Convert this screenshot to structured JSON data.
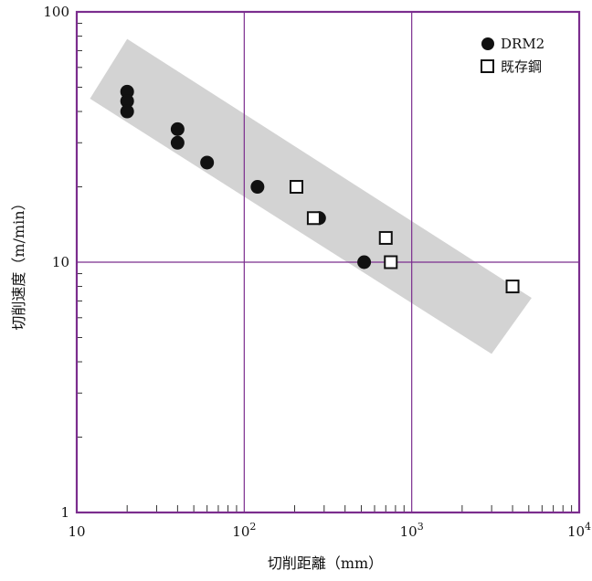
{
  "chart_data": {
    "type": "scatter",
    "x_scale": "log",
    "y_scale": "log",
    "xlim": [
      10,
      10000
    ],
    "ylim": [
      1,
      100
    ],
    "xlabel": "切削距離（mm）",
    "ylabel": "切削速度（m/min）",
    "x_tick_labels": [
      {
        "value": 10,
        "base": "10",
        "exp": ""
      },
      {
        "value": 100,
        "base": "10",
        "exp": "2"
      },
      {
        "value": 1000,
        "base": "10",
        "exp": "3"
      },
      {
        "value": 10000,
        "base": "10",
        "exp": "4"
      }
    ],
    "y_tick_labels": [
      {
        "value": 1,
        "label": "1"
      },
      {
        "value": 10,
        "label": "10"
      },
      {
        "value": 100,
        "label": "100"
      }
    ],
    "grid": true,
    "grid_color": "#7b2d8e",
    "frame_color": "#7b2d8e",
    "band_color": "#d3d3d3",
    "band_polygon": [
      [
        12,
        45
      ],
      [
        20,
        78
      ],
      [
        5200,
        7.2
      ],
      [
        3000,
        4.3
      ]
    ],
    "legend_position": "top-right",
    "series": [
      {
        "name": "DRM2",
        "marker": "filled-circle",
        "color": "#111111",
        "points": [
          [
            20,
            48
          ],
          [
            20,
            44
          ],
          [
            20,
            40
          ],
          [
            40,
            34
          ],
          [
            40,
            30
          ],
          [
            60,
            25
          ],
          [
            120,
            20
          ],
          [
            280,
            15
          ],
          [
            520,
            10
          ]
        ]
      },
      {
        "name": "既存鋼",
        "marker": "open-square",
        "color": "#111111",
        "points": [
          [
            205,
            20
          ],
          [
            260,
            15
          ],
          [
            700,
            12.5
          ],
          [
            750,
            10
          ],
          [
            4000,
            8
          ]
        ]
      }
    ]
  }
}
